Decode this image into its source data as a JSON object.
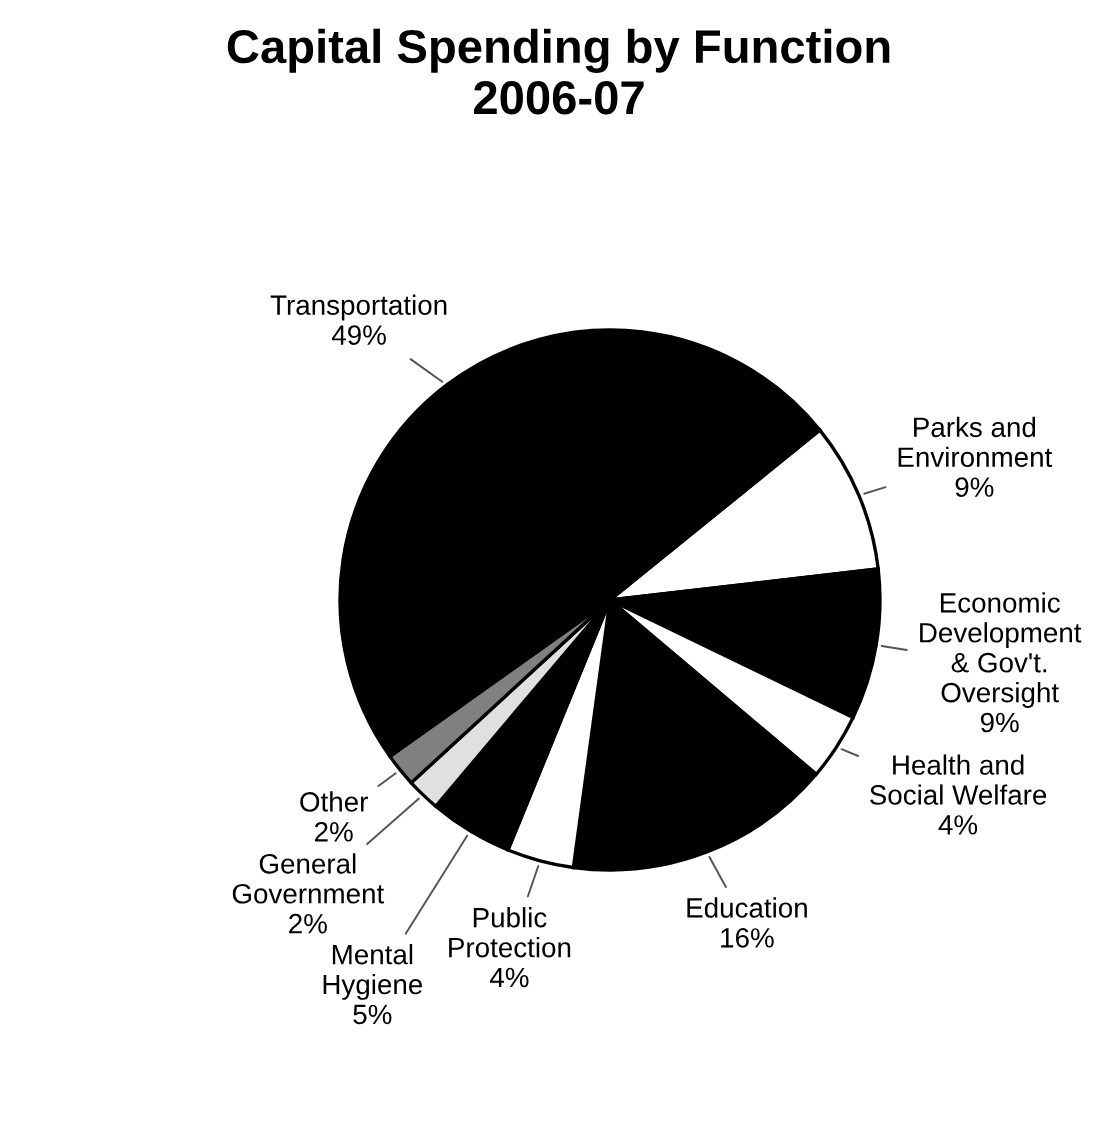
{
  "chart_data": {
    "type": "pie",
    "title": "Capital Spending by Function\n2006-07",
    "categories": [
      "Parks and\nEnvironment",
      "Economic\nDevelopment\n& Gov't.\nOversight",
      "Health and\nSocial Welfare",
      "Education",
      "Public\nProtection",
      "Mental\nHygiene",
      "General\nGovernment",
      "Other",
      "Transportation"
    ],
    "values": [
      9,
      9,
      4,
      16,
      4,
      5,
      2,
      2,
      49
    ],
    "value_labels": [
      "9%",
      "9%",
      "4%",
      "16%",
      "4%",
      "5%",
      "2%",
      "2%",
      "49%"
    ],
    "colors": [
      "#ffffff",
      "#000000",
      "#ffffff",
      "#000000",
      "#ffffff",
      "#000000",
      "#e0e0e0",
      "#808080",
      "#000000"
    ]
  }
}
